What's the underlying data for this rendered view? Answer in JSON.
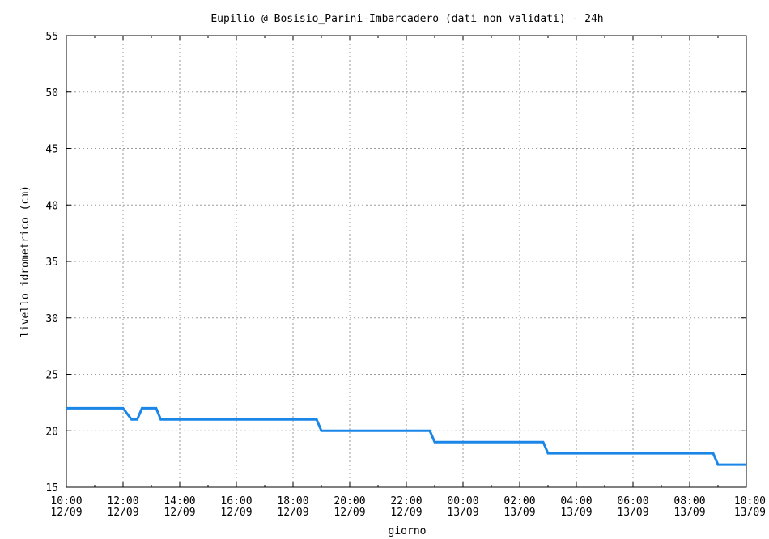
{
  "chart_data": {
    "type": "line",
    "title": "Eupilio @ Bosisio_Parini-Imbarcadero (dati non validati) - 24h",
    "xlabel": "giorno",
    "ylabel": "livello idrometrico (cm)",
    "ylim": [
      15,
      55
    ],
    "yticks": [
      15,
      20,
      25,
      30,
      35,
      40,
      45,
      50,
      55
    ],
    "xlim_hours": [
      0,
      24
    ],
    "xticks": [
      {
        "hour": 0,
        "time": "10:00",
        "date": "12/09"
      },
      {
        "hour": 2,
        "time": "12:00",
        "date": "12/09"
      },
      {
        "hour": 4,
        "time": "14:00",
        "date": "12/09"
      },
      {
        "hour": 6,
        "time": "16:00",
        "date": "12/09"
      },
      {
        "hour": 8,
        "time": "18:00",
        "date": "12/09"
      },
      {
        "hour": 10,
        "time": "20:00",
        "date": "12/09"
      },
      {
        "hour": 12,
        "time": "22:00",
        "date": "12/09"
      },
      {
        "hour": 14,
        "time": "00:00",
        "date": "13/09"
      },
      {
        "hour": 16,
        "time": "02:00",
        "date": "13/09"
      },
      {
        "hour": 18,
        "time": "04:00",
        "date": "13/09"
      },
      {
        "hour": 20,
        "time": "06:00",
        "date": "13/09"
      },
      {
        "hour": 22,
        "time": "08:00",
        "date": "13/09"
      },
      {
        "hour": 24,
        "time": "10:00",
        "date": "13/09"
      }
    ],
    "grid": true,
    "legend": "none",
    "series": [
      {
        "color": "#1a86e8",
        "points": [
          [
            0.0,
            22
          ],
          [
            2.0,
            22
          ],
          [
            2.3,
            21
          ],
          [
            2.5,
            21
          ],
          [
            2.67,
            22
          ],
          [
            3.17,
            22
          ],
          [
            3.33,
            21
          ],
          [
            8.83,
            21
          ],
          [
            9.0,
            20
          ],
          [
            12.83,
            20
          ],
          [
            13.0,
            19
          ],
          [
            16.83,
            19
          ],
          [
            17.0,
            18
          ],
          [
            22.83,
            18
          ],
          [
            23.0,
            17
          ],
          [
            24.0,
            17
          ]
        ]
      }
    ]
  }
}
